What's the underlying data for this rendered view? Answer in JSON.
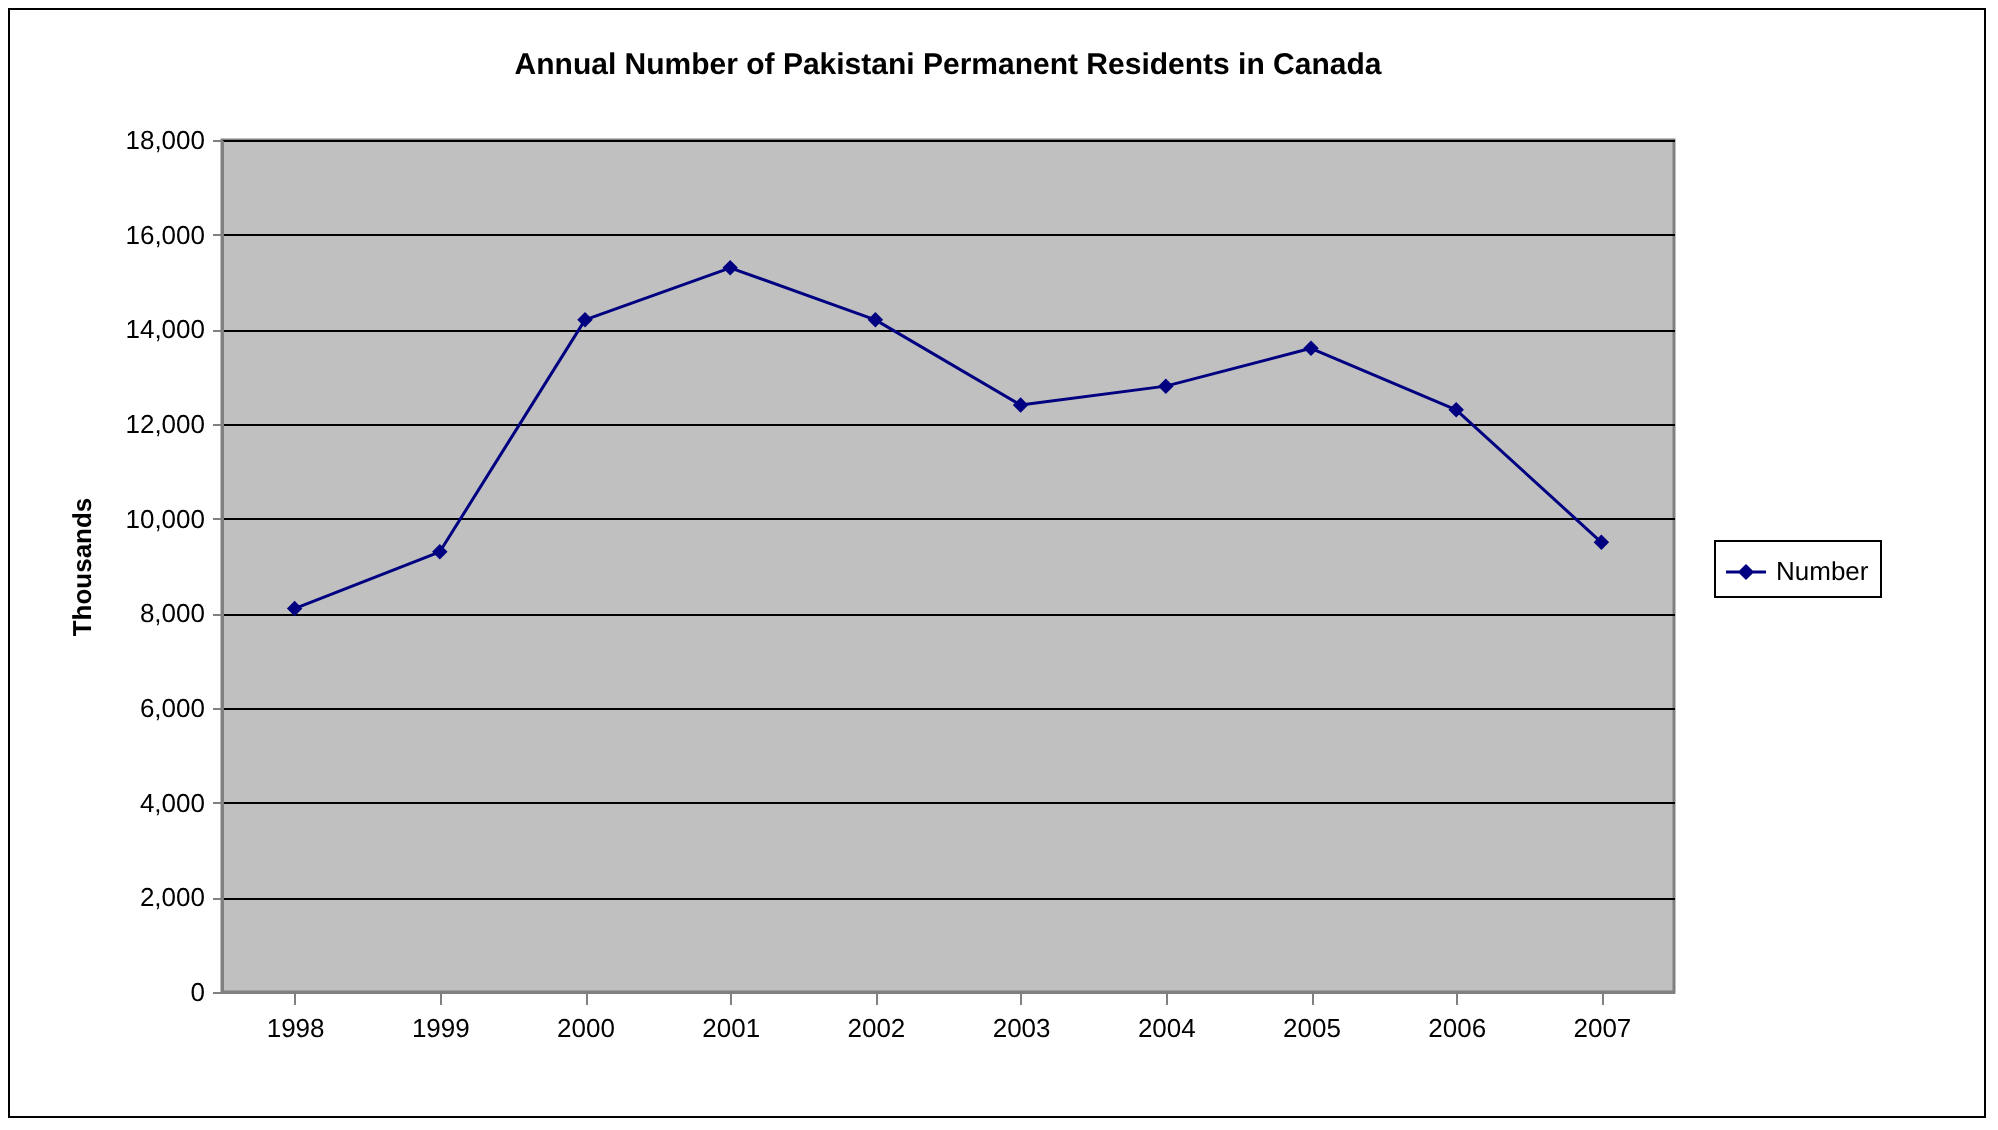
{
  "chart_data": {
    "type": "line",
    "title": "Annual Number of Pakistani Permanent Residents in Canada",
    "ylabel": "Thousands",
    "categories": [
      "1998",
      "1999",
      "2000",
      "2001",
      "2002",
      "2003",
      "2004",
      "2005",
      "2006",
      "2007"
    ],
    "series": [
      {
        "name": "Number",
        "color": "#000080",
        "values": [
          8100,
          9300,
          14200,
          15300,
          14200,
          12400,
          12800,
          13600,
          12300,
          9500
        ]
      }
    ],
    "ylim": [
      0,
      18000
    ],
    "yticks": [
      0,
      {
        "value": 2000,
        "label": "2,000"
      },
      {
        "value": 4000,
        "label": "4,000"
      },
      {
        "value": 6000,
        "label": "6,000"
      },
      {
        "value": 8000,
        "label": "8,000"
      },
      {
        "value": 10000,
        "label": "10,000"
      },
      {
        "value": 12000,
        "label": "12,000"
      },
      {
        "value": 14000,
        "label": "14,000"
      },
      {
        "value": 16000,
        "label": "16,000"
      },
      {
        "value": 18000,
        "label": "18,000"
      }
    ],
    "grid": "y",
    "legend": "right",
    "marker": "diamond"
  }
}
